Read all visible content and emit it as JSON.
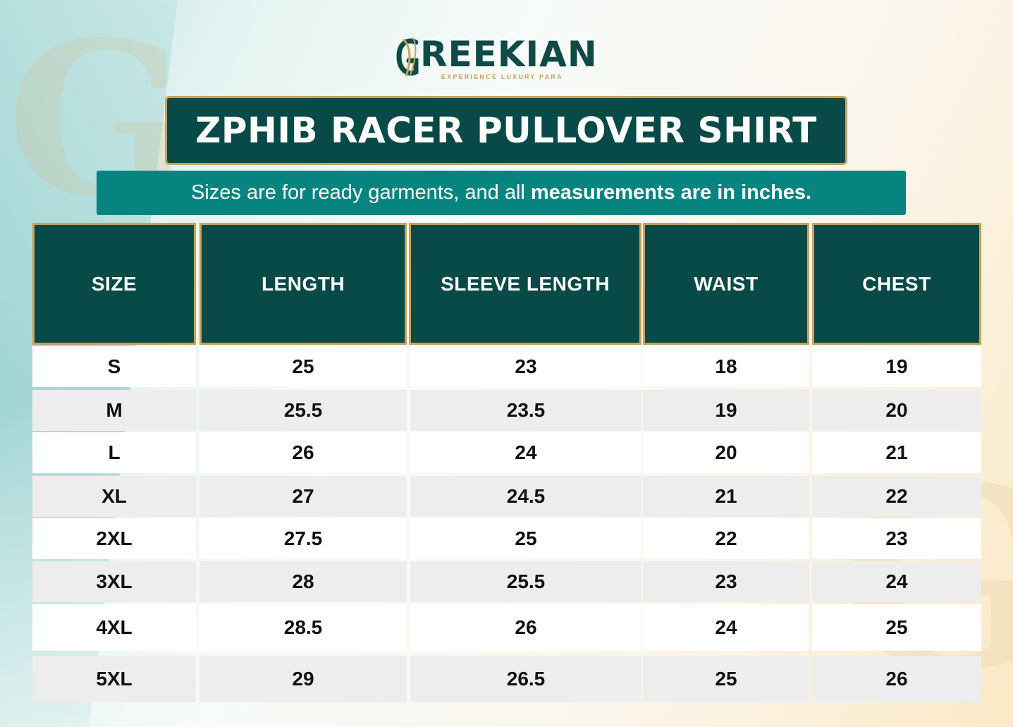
{
  "brand": {
    "name": "REEKIAN",
    "tagline": "EXPERIENCE LUXURY PARA",
    "gold": "#c9a25a",
    "teal": "#074a48"
  },
  "title": "ZPHIB RACER PULLOVER SHIRT",
  "subtitle": {
    "regular": "Sizes are for ready garments, and all",
    "bold": "measurements are in inches."
  },
  "table": {
    "headers": [
      "SIZE",
      "LENGTH",
      "SLEEVE LENGTH",
      "WAIST",
      "CHEST"
    ],
    "rows": [
      [
        "S",
        "25",
        "23",
        "18",
        "19"
      ],
      [
        "M",
        "25.5",
        "23.5",
        "19",
        "20"
      ],
      [
        "L",
        "26",
        "24",
        "20",
        "21"
      ],
      [
        "XL",
        "27",
        "24.5",
        "21",
        "22"
      ],
      [
        "2XL",
        "27.5",
        "25",
        "22",
        "23"
      ],
      [
        "3XL",
        "28",
        "25.5",
        "23",
        "24"
      ],
      [
        "4XL",
        "28.5",
        "26",
        "24",
        "25"
      ],
      [
        "5XL",
        "29",
        "26.5",
        "25",
        "26"
      ]
    ]
  }
}
